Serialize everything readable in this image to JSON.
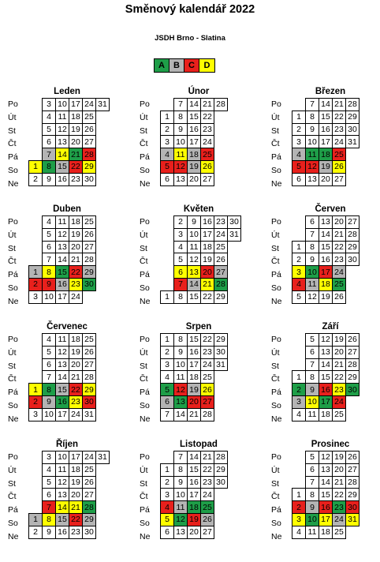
{
  "title": "Směnový kalendář 2022",
  "subtitle": "JSDH Brno - Slatina",
  "legend": [
    {
      "label": "A",
      "color": "#1e9e48"
    },
    {
      "label": "B",
      "color": "#b4b4b4"
    },
    {
      "label": "C",
      "color": "#e8201c"
    },
    {
      "label": "D",
      "color": "#ffff00"
    }
  ],
  "weekday_labels": [
    "Po",
    "Út",
    "St",
    "Čt",
    "Pá",
    "So",
    "Ne"
  ],
  "months": [
    {
      "name": "Leden",
      "start": 5,
      "days": 31,
      "shifts": {
        "1": "D",
        "7": "B",
        "8": "A",
        "14": "D",
        "15": "B",
        "21": "A",
        "22": "C",
        "28": "C",
        "29": "D"
      }
    },
    {
      "name": "Únor",
      "start": 1,
      "days": 28,
      "shifts": {
        "4": "B",
        "5": "C",
        "11": "D",
        "12": "C",
        "18": "B",
        "19": "B",
        "25": "C",
        "26": "D"
      }
    },
    {
      "name": "Březen",
      "start": 1,
      "days": 31,
      "shifts": {
        "4": "B",
        "5": "C",
        "11": "A",
        "12": "C",
        "18": "A",
        "19": "B",
        "25": "C",
        "26": "D"
      }
    },
    {
      "name": "Duben",
      "start": 4,
      "days": 30,
      "shifts": {
        "1": "B",
        "2": "C",
        "8": "D",
        "9": "C",
        "15": "A",
        "16": "B",
        "22": "C",
        "23": "D",
        "29": "B",
        "30": "A"
      }
    },
    {
      "name": "Květen",
      "start": 6,
      "days": 31,
      "shifts": {
        "6": "D",
        "7": "C",
        "13": "D",
        "14": "B",
        "20": "C",
        "21": "D",
        "27": "B",
        "28": "A"
      }
    },
    {
      "name": "Červen",
      "start": 2,
      "days": 30,
      "shifts": {
        "3": "D",
        "4": "C",
        "10": "A",
        "11": "B",
        "17": "C",
        "18": "D",
        "24": "B",
        "25": "A"
      }
    },
    {
      "name": "Červenec",
      "start": 4,
      "days": 31,
      "shifts": {
        "1": "D",
        "2": "C",
        "8": "A",
        "9": "B",
        "15": "B",
        "16": "A",
        "22": "C",
        "23": "D",
        "29": "D",
        "30": "C"
      }
    },
    {
      "name": "Srpen",
      "start": 0,
      "days": 31,
      "shifts": {
        "5": "A",
        "6": "B",
        "12": "C",
        "13": "A",
        "19": "B",
        "20": "C",
        "26": "D",
        "27": "C"
      }
    },
    {
      "name": "Září",
      "start": 3,
      "days": 30,
      "shifts": {
        "2": "A",
        "3": "B",
        "9": "B",
        "10": "D",
        "16": "C",
        "17": "A",
        "23": "D",
        "24": "C",
        "30": "A"
      }
    },
    {
      "name": "Říjen",
      "start": 5,
      "days": 31,
      "shifts": {
        "1": "B",
        "7": "C",
        "8": "D",
        "14": "D",
        "15": "B",
        "21": "D",
        "22": "C",
        "28": "A",
        "29": "B"
      }
    },
    {
      "name": "Listopad",
      "start": 1,
      "days": 30,
      "shifts": {
        "4": "C",
        "5": "D",
        "11": "B",
        "12": "A",
        "18": "A",
        "19": "C",
        "25": "A",
        "26": "B"
      }
    },
    {
      "name": "Prosinec",
      "start": 3,
      "days": 31,
      "shifts": {
        "2": "C",
        "3": "D",
        "9": "B",
        "10": "A",
        "16": "C",
        "17": "D",
        "23": "A",
        "24": "B",
        "30": "C",
        "31": "D"
      }
    }
  ]
}
